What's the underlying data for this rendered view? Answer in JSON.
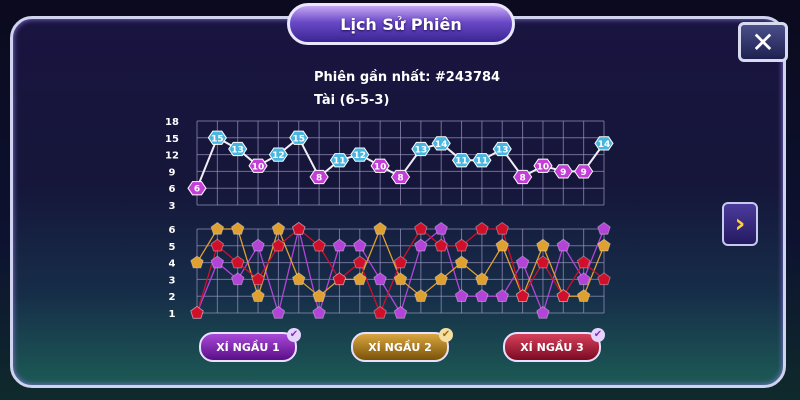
{
  "header": {
    "title": "Lịch Sử Phiên",
    "close_icon": "close-x-icon"
  },
  "info": {
    "session_label": "Phiên gần nhất: #243784",
    "result_label": "Tài (6-5-3)"
  },
  "nav": {
    "next_icon": "chevron-right-icon"
  },
  "chart_data": [
    {
      "type": "line",
      "x": [
        1,
        2,
        3,
        4,
        5,
        6,
        7,
        8,
        9,
        10,
        11,
        12,
        13,
        14,
        15,
        16,
        17,
        18,
        19,
        20,
        21
      ],
      "values": [
        6,
        15,
        13,
        10,
        12,
        15,
        8,
        11,
        12,
        10,
        8,
        13,
        14,
        11,
        11,
        13,
        8,
        10,
        9,
        9,
        14
      ],
      "y_ticks": [
        "18",
        "15",
        "12",
        "9",
        "6",
        "3"
      ],
      "ylim": [
        3,
        18
      ],
      "grid": true,
      "colors": {
        "xiu": "#c33fd6",
        "tai": "#49b6e0",
        "line": "#f2eef8"
      }
    },
    {
      "type": "line",
      "x": [
        1,
        2,
        3,
        4,
        5,
        6,
        7,
        8,
        9,
        10,
        11,
        12,
        13,
        14,
        15,
        16,
        17,
        18,
        19,
        20,
        21
      ],
      "y_ticks": [
        "6",
        "5",
        "4",
        "3",
        "2",
        "1"
      ],
      "ylim": [
        1,
        6
      ],
      "grid": true,
      "series": [
        {
          "name": "XÍ NGẦU 1",
          "color": "#b443d8",
          "values": [
            1,
            4,
            3,
            5,
            1,
            6,
            1,
            5,
            5,
            3,
            1,
            5,
            6,
            2,
            2,
            2,
            4,
            1,
            5,
            3,
            6
          ]
        },
        {
          "name": "XÍ NGẦU 2",
          "color": "#e0a030",
          "values": [
            4,
            6,
            6,
            2,
            6,
            3,
            2,
            3,
            3,
            6,
            3,
            2,
            3,
            4,
            3,
            5,
            2,
            5,
            2,
            2,
            5
          ]
        },
        {
          "name": "XÍ NGẦU 3",
          "color": "#d0102a",
          "values": [
            1,
            5,
            4,
            3,
            5,
            6,
            5,
            3,
            4,
            1,
            4,
            6,
            5,
            5,
            6,
            6,
            2,
            4,
            2,
            4,
            3
          ]
        }
      ]
    }
  ],
  "buttons": [
    {
      "label": "XÍ NGẦU 1",
      "color": "#7b1fa8",
      "checked": true
    },
    {
      "label": "XÍ NGẦU 2",
      "color": "#a57412",
      "checked": true
    },
    {
      "label": "XÍ NGẦU 3",
      "color": "#a0102e",
      "checked": true
    }
  ]
}
